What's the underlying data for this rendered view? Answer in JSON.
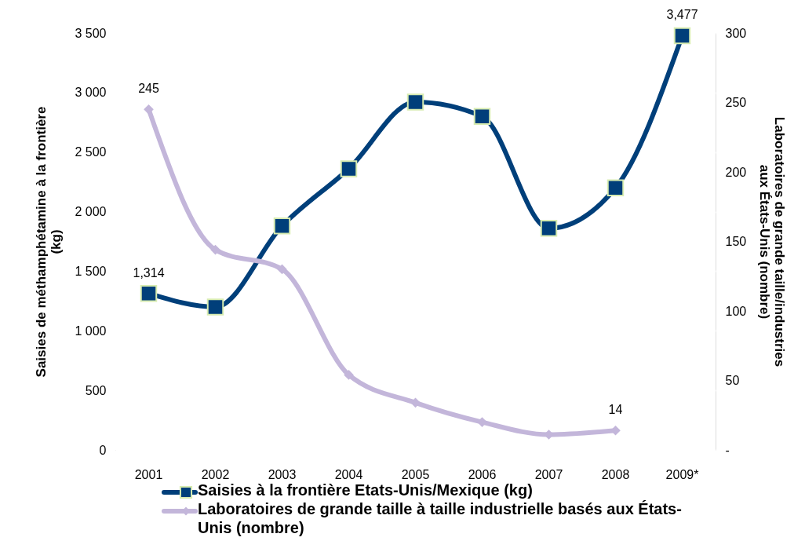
{
  "chart_data": {
    "type": "line",
    "ylabel": "Saisies de méthamphétamine à la frontière (kg)",
    "y2label": "Laboratoires de grande taille/industries aux États-Unis (nombre)",
    "categories": [
      "2001",
      "2002",
      "2003",
      "2004",
      "2005",
      "2006",
      "2007",
      "2008",
      "2009*"
    ],
    "series": [
      {
        "name": "Saisies à la frontière Etats-Unis/Mexique (kg)",
        "color": "#003f7a",
        "marker": "square",
        "values": [
          1314,
          1200,
          1880,
          2360,
          2920,
          2800,
          1860,
          2200,
          3477
        ],
        "value_labels": [
          "1,314",
          null,
          null,
          null,
          null,
          null,
          null,
          null,
          "3,477"
        ]
      },
      {
        "name": "Laboratoires de grande taille à taille industrielle basés aux États-Unis (nombre)",
        "color": "#c3b6da",
        "marker": "diamond",
        "axis": "y2",
        "values": [
          245,
          144,
          130,
          54,
          34,
          20,
          11,
          14,
          null
        ],
        "value_labels": [
          "245",
          null,
          null,
          null,
          null,
          null,
          null,
          "14",
          null
        ]
      }
    ],
    "ylim": [
      0,
      3500
    ],
    "yticks": [
      0,
      500,
      {
        "value": 1000,
        "label": "1 000"
      },
      {
        "value": 1500,
        "label": "1 500"
      },
      {
        "value": 2000,
        "label": "2 000"
      },
      {
        "value": 2500,
        "label": "2 500"
      },
      {
        "value": 3000,
        "label": "3 000"
      },
      {
        "value": 3500,
        "label": "3 500"
      }
    ],
    "y2lim": [
      0,
      300
    ],
    "y2ticks": [
      {
        "value": 0,
        "label": "-"
      },
      50,
      100,
      150,
      200,
      250,
      300
    ],
    "grid": true,
    "legend": "bottom",
    "line_style": "solid"
  }
}
